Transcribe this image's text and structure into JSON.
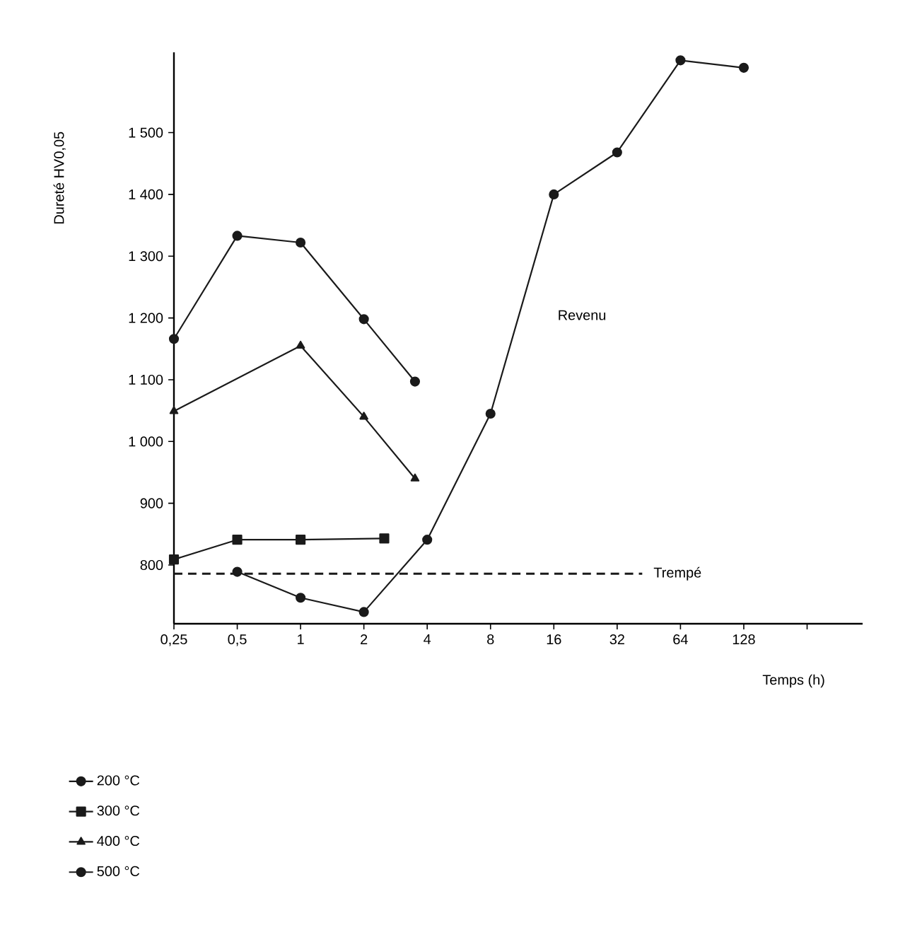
{
  "chart_data": {
    "type": "line",
    "xlabel": "Temps (h)",
    "ylabel": "Dureté HV0,05",
    "log": "x",
    "xlim": [
      0.25,
      470
    ],
    "ylim": [
      705,
      1630
    ],
    "xticks": [
      {
        "value": 0.25,
        "label": "0,25"
      },
      {
        "value": 0.5,
        "label": "0,5"
      },
      1,
      2,
      4,
      8,
      16,
      32,
      64,
      128,
      {
        "value": 256,
        "label": null
      }
    ],
    "yticks": [
      800,
      900,
      {
        "value": 1000,
        "label": "1 000"
      },
      {
        "value": 1100,
        "label": "1 100"
      },
      {
        "value": 1200,
        "label": "1 200"
      },
      {
        "value": 1300,
        "label": "1 300"
      },
      {
        "value": 1400,
        "label": "1 400"
      },
      {
        "value": 1500,
        "label": "1 500"
      }
    ],
    "grid": false,
    "legend": "bottom left",
    "line_style": "solid",
    "series": [
      {
        "name": "200 °C",
        "color": "#1a1a1a",
        "marker": "circle",
        "x": [
          0.5,
          1,
          2,
          4,
          8,
          16,
          32,
          64,
          128
        ],
        "values": [
          789,
          747,
          724,
          841,
          1045,
          1400,
          1468,
          1617,
          1605
        ]
      },
      {
        "name": "300 °C",
        "color": "#1a1a1a",
        "marker": "square",
        "x": [
          0.25,
          0.5,
          1,
          2.5
        ],
        "values": [
          809,
          841,
          841,
          843
        ]
      },
      {
        "name": "400 °C",
        "color": "#1a1a1a",
        "marker": "triangle",
        "x": [
          0.25,
          1,
          2,
          3.5
        ],
        "values": [
          1049,
          1155,
          1040,
          940
        ]
      },
      {
        "name": "500 °C",
        "color": "#1a1a1a",
        "marker": "circle",
        "x": [
          0.25,
          0.5,
          1,
          2,
          3.5
        ],
        "values": [
          1166,
          1333,
          1322,
          1198,
          1097
        ]
      }
    ],
    "ref_lines": [
      {
        "axis": "y",
        "value": 786,
        "label": "Trempé",
        "line_style": "dashed",
        "color": "#1a1a1a"
      }
    ],
    "annotations": [
      "Revenu"
    ]
  }
}
